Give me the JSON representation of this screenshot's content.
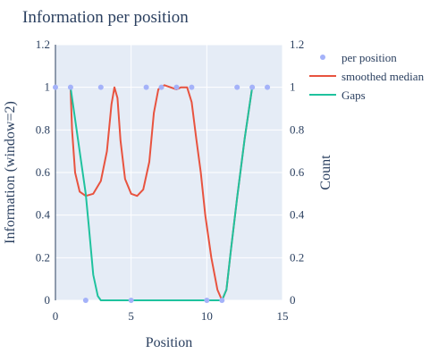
{
  "chart_data": {
    "type": "line",
    "title": "Information per position",
    "xlabel": "Position",
    "ylabel": "Information (window=2)",
    "y2label": "Count",
    "xlim": [
      0,
      15
    ],
    "ylim": [
      0,
      1.2
    ],
    "y2lim": [
      0,
      1.2
    ],
    "x_ticks": [
      0,
      5,
      10,
      15
    ],
    "y_ticks": [
      0,
      0.2,
      0.4,
      0.6,
      0.8,
      1,
      1.2
    ],
    "y2_ticks": [
      0,
      0.2,
      0.4,
      0.6,
      0.8,
      1,
      1.2
    ],
    "grid": true,
    "legend_position": "top-right",
    "series": [
      {
        "name": "per position",
        "type": "scatter",
        "color": "#a4b2f9",
        "points": [
          [
            0,
            1
          ],
          [
            1,
            1
          ],
          [
            2,
            0
          ],
          [
            3,
            1
          ],
          [
            5,
            0
          ],
          [
            6,
            1
          ],
          [
            7,
            1
          ],
          [
            8,
            1
          ],
          [
            9,
            1
          ],
          [
            10,
            0
          ],
          [
            11,
            0
          ],
          [
            12,
            1
          ],
          [
            13,
            1
          ],
          [
            14,
            1
          ]
        ]
      },
      {
        "name": "smoothed median",
        "type": "line",
        "color": "#e8533f",
        "points": [
          [
            1,
            1
          ],
          [
            1.1,
            0.8
          ],
          [
            1.3,
            0.6
          ],
          [
            1.6,
            0.51
          ],
          [
            2,
            0.49
          ],
          [
            2.5,
            0.5
          ],
          [
            3,
            0.56
          ],
          [
            3.4,
            0.7
          ],
          [
            3.7,
            0.92
          ],
          [
            3.9,
            1.0
          ],
          [
            4.1,
            0.95
          ],
          [
            4.3,
            0.75
          ],
          [
            4.6,
            0.57
          ],
          [
            5,
            0.5
          ],
          [
            5.4,
            0.49
          ],
          [
            5.8,
            0.52
          ],
          [
            6.2,
            0.65
          ],
          [
            6.5,
            0.88
          ],
          [
            6.8,
            0.99
          ],
          [
            7.2,
            1.01
          ],
          [
            7.6,
            1.0
          ],
          [
            8,
            0.99
          ],
          [
            8.3,
            1.0
          ],
          [
            8.7,
            1.0
          ],
          [
            9.0,
            0.93
          ],
          [
            9.3,
            0.76
          ],
          [
            9.6,
            0.6
          ],
          [
            9.9,
            0.4
          ],
          [
            10.3,
            0.2
          ],
          [
            10.7,
            0.05
          ],
          [
            11,
            0.0
          ],
          [
            11.3,
            0.05
          ],
          [
            11.6,
            0.24
          ],
          [
            12,
            0.48
          ],
          [
            12.5,
            0.76
          ],
          [
            13,
            1.0
          ]
        ]
      },
      {
        "name": "Gaps",
        "type": "line",
        "color": "#1fc29e",
        "points": [
          [
            1,
            1
          ],
          [
            1.3,
            0.85
          ],
          [
            1.7,
            0.65
          ],
          [
            2,
            0.5
          ],
          [
            2.2,
            0.35
          ],
          [
            2.5,
            0.12
          ],
          [
            2.8,
            0.02
          ],
          [
            3,
            0.0
          ],
          [
            4,
            0.0
          ],
          [
            5,
            0.0
          ],
          [
            6,
            0.0
          ],
          [
            7,
            0.0
          ],
          [
            8,
            0.0
          ],
          [
            9,
            0.0
          ],
          [
            10,
            0.0
          ],
          [
            10.6,
            0.0
          ],
          [
            11,
            0.0
          ],
          [
            11.3,
            0.05
          ],
          [
            11.6,
            0.24
          ],
          [
            12,
            0.48
          ],
          [
            12.5,
            0.76
          ],
          [
            13,
            1.0
          ]
        ]
      }
    ]
  }
}
